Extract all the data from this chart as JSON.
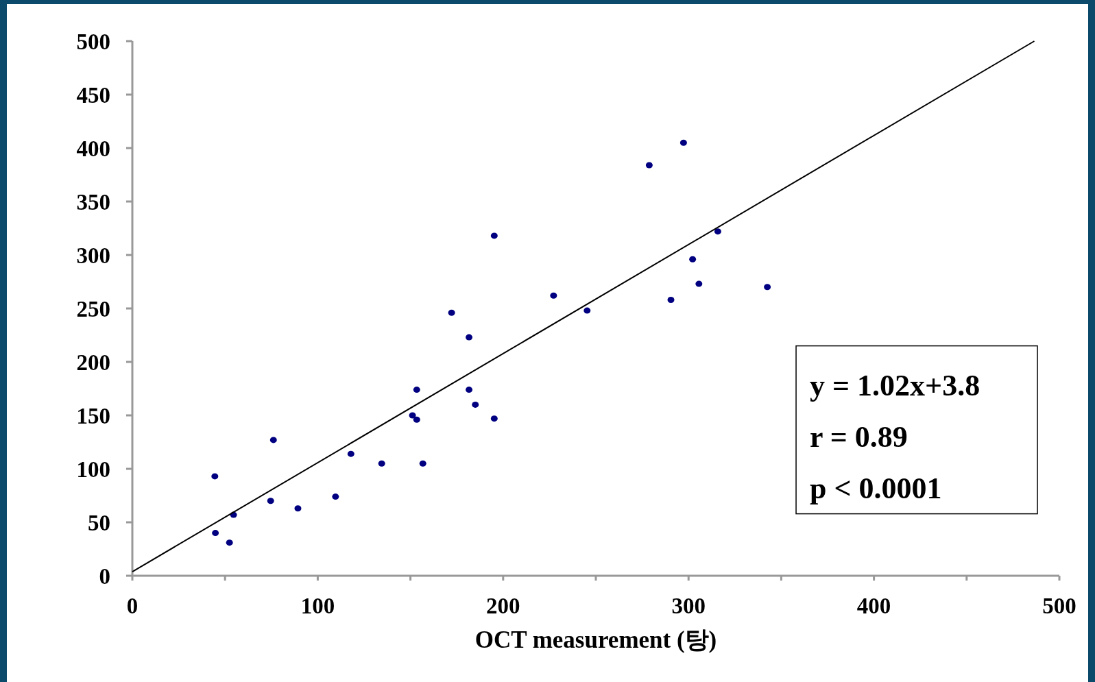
{
  "chart_data": {
    "type": "scatter",
    "xlabel": "OCT measurement (탕)",
    "xlim": [
      0,
      500
    ],
    "ylim": [
      0,
      500
    ],
    "xticks": [
      0,
      {
        "value": 50,
        "label": null
      },
      100,
      {
        "value": 150,
        "label": null
      },
      200,
      {
        "value": 250,
        "label": null
      },
      300,
      {
        "value": 350,
        "label": null
      },
      400,
      {
        "value": 450,
        "label": null
      },
      500
    ],
    "yticks": [
      0,
      50,
      100,
      150,
      200,
      250,
      300,
      350,
      400,
      450,
      500
    ],
    "grid": false,
    "series": [
      {
        "marker": "circle",
        "color": "#000080",
        "x": [
          44.5,
          44.8,
          52.4,
          54.6,
          74.6,
          76.1,
          89.3,
          109.6,
          117.9,
          134.5,
          151.1,
          153.4,
          153.4,
          156.7,
          172.2,
          181.6,
          181.6,
          185,
          195.2,
          195.2,
          227.2,
          245.3,
          278.8,
          290.5,
          297.3,
          302.2,
          305.6,
          315.8,
          342.5
        ],
        "values": [
          93,
          40,
          31,
          57,
          70,
          127,
          63,
          74,
          114,
          105,
          150,
          174,
          146,
          105,
          246,
          223,
          174,
          160,
          318,
          147,
          262,
          248,
          384,
          258,
          405,
          296,
          273,
          322,
          270
        ]
      },
      {
        "type": "line",
        "color": "#000000",
        "x": [
          0,
          486.5
        ],
        "values": [
          3.8,
          500
        ]
      }
    ],
    "annotations": [
      "y = 1.02x+3.8",
      "r = 0.89",
      "p < 0.0001"
    ]
  }
}
